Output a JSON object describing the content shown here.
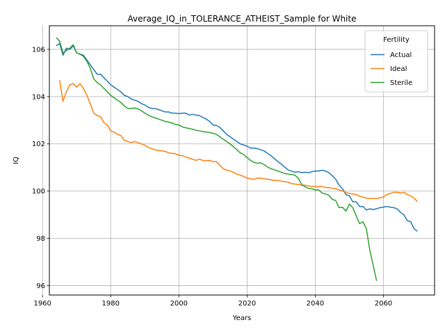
{
  "chart_data": {
    "type": "line",
    "title": "Average_IQ_in_TOLERANCE_ATHEIST_Sample for White",
    "xlabel": "Years",
    "ylabel": "IQ",
    "xlim": [
      1962,
      2075
    ],
    "ylim": [
      95.6,
      107.0
    ],
    "xticks": [
      1960,
      1980,
      2000,
      2020,
      2040,
      2060
    ],
    "yticks": [
      96,
      98,
      100,
      102,
      104,
      106
    ],
    "grid": true,
    "legend": {
      "title": "Fertility",
      "position": "top-right"
    },
    "series": [
      {
        "name": "Actual",
        "color": "#1f77b4",
        "points": [
          [
            1964,
            106.15
          ],
          [
            1965,
            106.25
          ],
          [
            1966,
            105.75
          ],
          [
            1967,
            106.05
          ],
          [
            1968,
            106.0
          ],
          [
            1969,
            106.15
          ],
          [
            1970,
            105.85
          ],
          [
            1971,
            105.8
          ],
          [
            1972,
            105.75
          ],
          [
            1973,
            105.55
          ],
          [
            1974,
            105.35
          ],
          [
            1975,
            105.15
          ],
          [
            1976,
            104.95
          ],
          [
            1977,
            104.95
          ],
          [
            1978,
            104.8
          ],
          [
            1979,
            104.65
          ],
          [
            1980,
            104.5
          ],
          [
            1981,
            104.4
          ],
          [
            1982,
            104.3
          ],
          [
            1983,
            104.2
          ],
          [
            1984,
            104.05
          ],
          [
            1985,
            104.0
          ],
          [
            1986,
            103.9
          ],
          [
            1987,
            103.85
          ],
          [
            1988,
            103.8
          ],
          [
            1989,
            103.7
          ],
          [
            1990,
            103.65
          ],
          [
            1991,
            103.55
          ],
          [
            1992,
            103.5
          ],
          [
            1993,
            103.5
          ],
          [
            1994,
            103.45
          ],
          [
            1995,
            103.4
          ],
          [
            1996,
            103.35
          ],
          [
            1997,
            103.35
          ],
          [
            1998,
            103.3
          ],
          [
            1999,
            103.3
          ],
          [
            2000,
            103.28
          ],
          [
            2001,
            103.3
          ],
          [
            2002,
            103.3
          ],
          [
            2003,
            103.22
          ],
          [
            2004,
            103.25
          ],
          [
            2005,
            103.22
          ],
          [
            2006,
            103.2
          ],
          [
            2007,
            103.12
          ],
          [
            2008,
            103.05
          ],
          [
            2009,
            102.95
          ],
          [
            2010,
            102.8
          ],
          [
            2011,
            102.78
          ],
          [
            2012,
            102.7
          ],
          [
            2013,
            102.55
          ],
          [
            2014,
            102.4
          ],
          [
            2015,
            102.3
          ],
          [
            2016,
            102.2
          ],
          [
            2017,
            102.1
          ],
          [
            2018,
            102.0
          ],
          [
            2019,
            101.95
          ],
          [
            2020,
            101.9
          ],
          [
            2021,
            101.82
          ],
          [
            2022,
            101.82
          ],
          [
            2023,
            101.8
          ],
          [
            2024,
            101.75
          ],
          [
            2025,
            101.7
          ],
          [
            2026,
            101.6
          ],
          [
            2027,
            101.5
          ],
          [
            2028,
            101.38
          ],
          [
            2029,
            101.25
          ],
          [
            2030,
            101.15
          ],
          [
            2031,
            101.02
          ],
          [
            2032,
            100.9
          ],
          [
            2033,
            100.85
          ],
          [
            2034,
            100.8
          ],
          [
            2035,
            100.82
          ],
          [
            2036,
            100.78
          ],
          [
            2037,
            100.8
          ],
          [
            2038,
            100.78
          ],
          [
            2039,
            100.82
          ],
          [
            2040,
            100.85
          ],
          [
            2041,
            100.85
          ],
          [
            2042,
            100.88
          ],
          [
            2043,
            100.85
          ],
          [
            2044,
            100.78
          ],
          [
            2045,
            100.65
          ],
          [
            2046,
            100.5
          ],
          [
            2047,
            100.25
          ],
          [
            2048,
            100.1
          ],
          [
            2049,
            99.85
          ],
          [
            2050,
            99.8
          ],
          [
            2051,
            99.55
          ],
          [
            2052,
            99.55
          ],
          [
            2053,
            99.35
          ],
          [
            2054,
            99.35
          ],
          [
            2055,
            99.2
          ],
          [
            2056,
            99.25
          ],
          [
            2057,
            99.22
          ],
          [
            2058,
            99.25
          ],
          [
            2059,
            99.3
          ],
          [
            2060,
            99.32
          ],
          [
            2061,
            99.35
          ],
          [
            2062,
            99.32
          ],
          [
            2063,
            99.3
          ],
          [
            2064,
            99.25
          ],
          [
            2065,
            99.1
          ],
          [
            2066,
            99.0
          ],
          [
            2067,
            98.75
          ],
          [
            2068,
            98.7
          ],
          [
            2069,
            98.4
          ],
          [
            2070,
            98.3
          ]
        ]
      },
      {
        "name": "Ideal",
        "color": "#ff7f0e",
        "points": [
          [
            1965,
            104.7
          ],
          [
            1966,
            103.8
          ],
          [
            1967,
            104.2
          ],
          [
            1968,
            104.5
          ],
          [
            1969,
            104.55
          ],
          [
            1970,
            104.4
          ],
          [
            1971,
            104.55
          ],
          [
            1972,
            104.35
          ],
          [
            1973,
            104.05
          ],
          [
            1974,
            103.7
          ],
          [
            1975,
            103.3
          ],
          [
            1976,
            103.2
          ],
          [
            1977,
            103.15
          ],
          [
            1978,
            102.9
          ],
          [
            1979,
            102.8
          ],
          [
            1980,
            102.55
          ],
          [
            1981,
            102.5
          ],
          [
            1982,
            102.4
          ],
          [
            1983,
            102.35
          ],
          [
            1984,
            102.15
          ],
          [
            1985,
            102.1
          ],
          [
            1986,
            102.05
          ],
          [
            1987,
            102.1
          ],
          [
            1988,
            102.05
          ],
          [
            1989,
            102.0
          ],
          [
            1990,
            101.95
          ],
          [
            1991,
            101.85
          ],
          [
            1992,
            101.8
          ],
          [
            1993,
            101.75
          ],
          [
            1994,
            101.72
          ],
          [
            1995,
            101.7
          ],
          [
            1996,
            101.68
          ],
          [
            1997,
            101.62
          ],
          [
            1998,
            101.6
          ],
          [
            1999,
            101.58
          ],
          [
            2000,
            101.52
          ],
          [
            2001,
            101.5
          ],
          [
            2002,
            101.45
          ],
          [
            2003,
            101.4
          ],
          [
            2004,
            101.35
          ],
          [
            2005,
            101.3
          ],
          [
            2006,
            101.35
          ],
          [
            2007,
            101.3
          ],
          [
            2008,
            101.28
          ],
          [
            2009,
            101.3
          ],
          [
            2010,
            101.25
          ],
          [
            2011,
            101.25
          ],
          [
            2012,
            101.1
          ],
          [
            2013,
            100.95
          ],
          [
            2014,
            100.88
          ],
          [
            2015,
            100.85
          ],
          [
            2016,
            100.8
          ],
          [
            2017,
            100.72
          ],
          [
            2018,
            100.68
          ],
          [
            2019,
            100.62
          ],
          [
            2020,
            100.55
          ],
          [
            2021,
            100.52
          ],
          [
            2022,
            100.5
          ],
          [
            2023,
            100.55
          ],
          [
            2024,
            100.55
          ],
          [
            2025,
            100.52
          ],
          [
            2026,
            100.5
          ],
          [
            2027,
            100.48
          ],
          [
            2028,
            100.45
          ],
          [
            2029,
            100.45
          ],
          [
            2030,
            100.42
          ],
          [
            2031,
            100.4
          ],
          [
            2032,
            100.38
          ],
          [
            2033,
            100.32
          ],
          [
            2034,
            100.3
          ],
          [
            2035,
            100.28
          ],
          [
            2036,
            100.25
          ],
          [
            2037,
            100.25
          ],
          [
            2038,
            100.22
          ],
          [
            2039,
            100.2
          ],
          [
            2040,
            100.2
          ],
          [
            2041,
            100.18
          ],
          [
            2042,
            100.2
          ],
          [
            2043,
            100.15
          ],
          [
            2044,
            100.15
          ],
          [
            2045,
            100.12
          ],
          [
            2046,
            100.1
          ],
          [
            2047,
            100.05
          ],
          [
            2048,
            100.0
          ],
          [
            2049,
            99.95
          ],
          [
            2050,
            99.9
          ],
          [
            2051,
            99.88
          ],
          [
            2052,
            99.85
          ],
          [
            2053,
            99.78
          ],
          [
            2054,
            99.75
          ],
          [
            2055,
            99.7
          ],
          [
            2056,
            99.68
          ],
          [
            2057,
            99.7
          ],
          [
            2058,
            99.68
          ],
          [
            2059,
            99.72
          ],
          [
            2060,
            99.75
          ],
          [
            2061,
            99.85
          ],
          [
            2062,
            99.9
          ],
          [
            2063,
            99.95
          ],
          [
            2064,
            99.95
          ],
          [
            2065,
            99.92
          ],
          [
            2066,
            99.95
          ],
          [
            2067,
            99.85
          ],
          [
            2068,
            99.8
          ],
          [
            2069,
            99.7
          ],
          [
            2070,
            99.55
          ]
        ]
      },
      {
        "name": "Sterile",
        "color": "#2ca02c",
        "points": [
          [
            1964,
            106.5
          ],
          [
            1965,
            106.35
          ],
          [
            1966,
            105.85
          ],
          [
            1967,
            105.95
          ],
          [
            1968,
            106.05
          ],
          [
            1969,
            106.2
          ],
          [
            1970,
            105.85
          ],
          [
            1971,
            105.8
          ],
          [
            1972,
            105.7
          ],
          [
            1973,
            105.5
          ],
          [
            1974,
            105.2
          ],
          [
            1975,
            104.75
          ],
          [
            1976,
            104.6
          ],
          [
            1977,
            104.5
          ],
          [
            1978,
            104.35
          ],
          [
            1979,
            104.2
          ],
          [
            1980,
            104.05
          ],
          [
            1981,
            103.95
          ],
          [
            1982,
            103.85
          ],
          [
            1983,
            103.75
          ],
          [
            1984,
            103.6
          ],
          [
            1985,
            103.5
          ],
          [
            1986,
            103.5
          ],
          [
            1987,
            103.52
          ],
          [
            1988,
            103.48
          ],
          [
            1989,
            103.4
          ],
          [
            1990,
            103.3
          ],
          [
            1991,
            103.22
          ],
          [
            1992,
            103.15
          ],
          [
            1993,
            103.1
          ],
          [
            1994,
            103.05
          ],
          [
            1995,
            103.0
          ],
          [
            1996,
            102.95
          ],
          [
            1997,
            102.92
          ],
          [
            1998,
            102.88
          ],
          [
            1999,
            102.82
          ],
          [
            2000,
            102.8
          ],
          [
            2001,
            102.72
          ],
          [
            2002,
            102.68
          ],
          [
            2003,
            102.65
          ],
          [
            2004,
            102.62
          ],
          [
            2005,
            102.58
          ],
          [
            2006,
            102.55
          ],
          [
            2007,
            102.52
          ],
          [
            2008,
            102.5
          ],
          [
            2009,
            102.48
          ],
          [
            2010,
            102.45
          ],
          [
            2011,
            102.4
          ],
          [
            2012,
            102.3
          ],
          [
            2013,
            102.2
          ],
          [
            2014,
            102.1
          ],
          [
            2015,
            102.0
          ],
          [
            2016,
            101.88
          ],
          [
            2017,
            101.75
          ],
          [
            2018,
            101.62
          ],
          [
            2019,
            101.55
          ],
          [
            2020,
            101.42
          ],
          [
            2021,
            101.3
          ],
          [
            2022,
            101.22
          ],
          [
            2023,
            101.18
          ],
          [
            2024,
            101.2
          ],
          [
            2025,
            101.12
          ],
          [
            2026,
            101.02
          ],
          [
            2027,
            100.95
          ],
          [
            2028,
            100.9
          ],
          [
            2029,
            100.85
          ],
          [
            2030,
            100.8
          ],
          [
            2031,
            100.75
          ],
          [
            2032,
            100.72
          ],
          [
            2033,
            100.7
          ],
          [
            2034,
            100.68
          ],
          [
            2035,
            100.55
          ],
          [
            2036,
            100.28
          ],
          [
            2037,
            100.18
          ],
          [
            2038,
            100.12
          ],
          [
            2039,
            100.1
          ],
          [
            2040,
            100.05
          ],
          [
            2041,
            100.05
          ],
          [
            2042,
            99.92
          ],
          [
            2043,
            99.88
          ],
          [
            2044,
            99.82
          ],
          [
            2045,
            99.65
          ],
          [
            2046,
            99.6
          ],
          [
            2047,
            99.3
          ],
          [
            2048,
            99.32
          ],
          [
            2049,
            99.15
          ],
          [
            2050,
            99.45
          ],
          [
            2051,
            99.3
          ],
          [
            2052,
            98.95
          ],
          [
            2053,
            98.62
          ],
          [
            2054,
            98.7
          ],
          [
            2055,
            98.4
          ],
          [
            2056,
            97.5
          ],
          [
            2057,
            96.85
          ],
          [
            2058,
            96.2
          ]
        ]
      }
    ]
  }
}
